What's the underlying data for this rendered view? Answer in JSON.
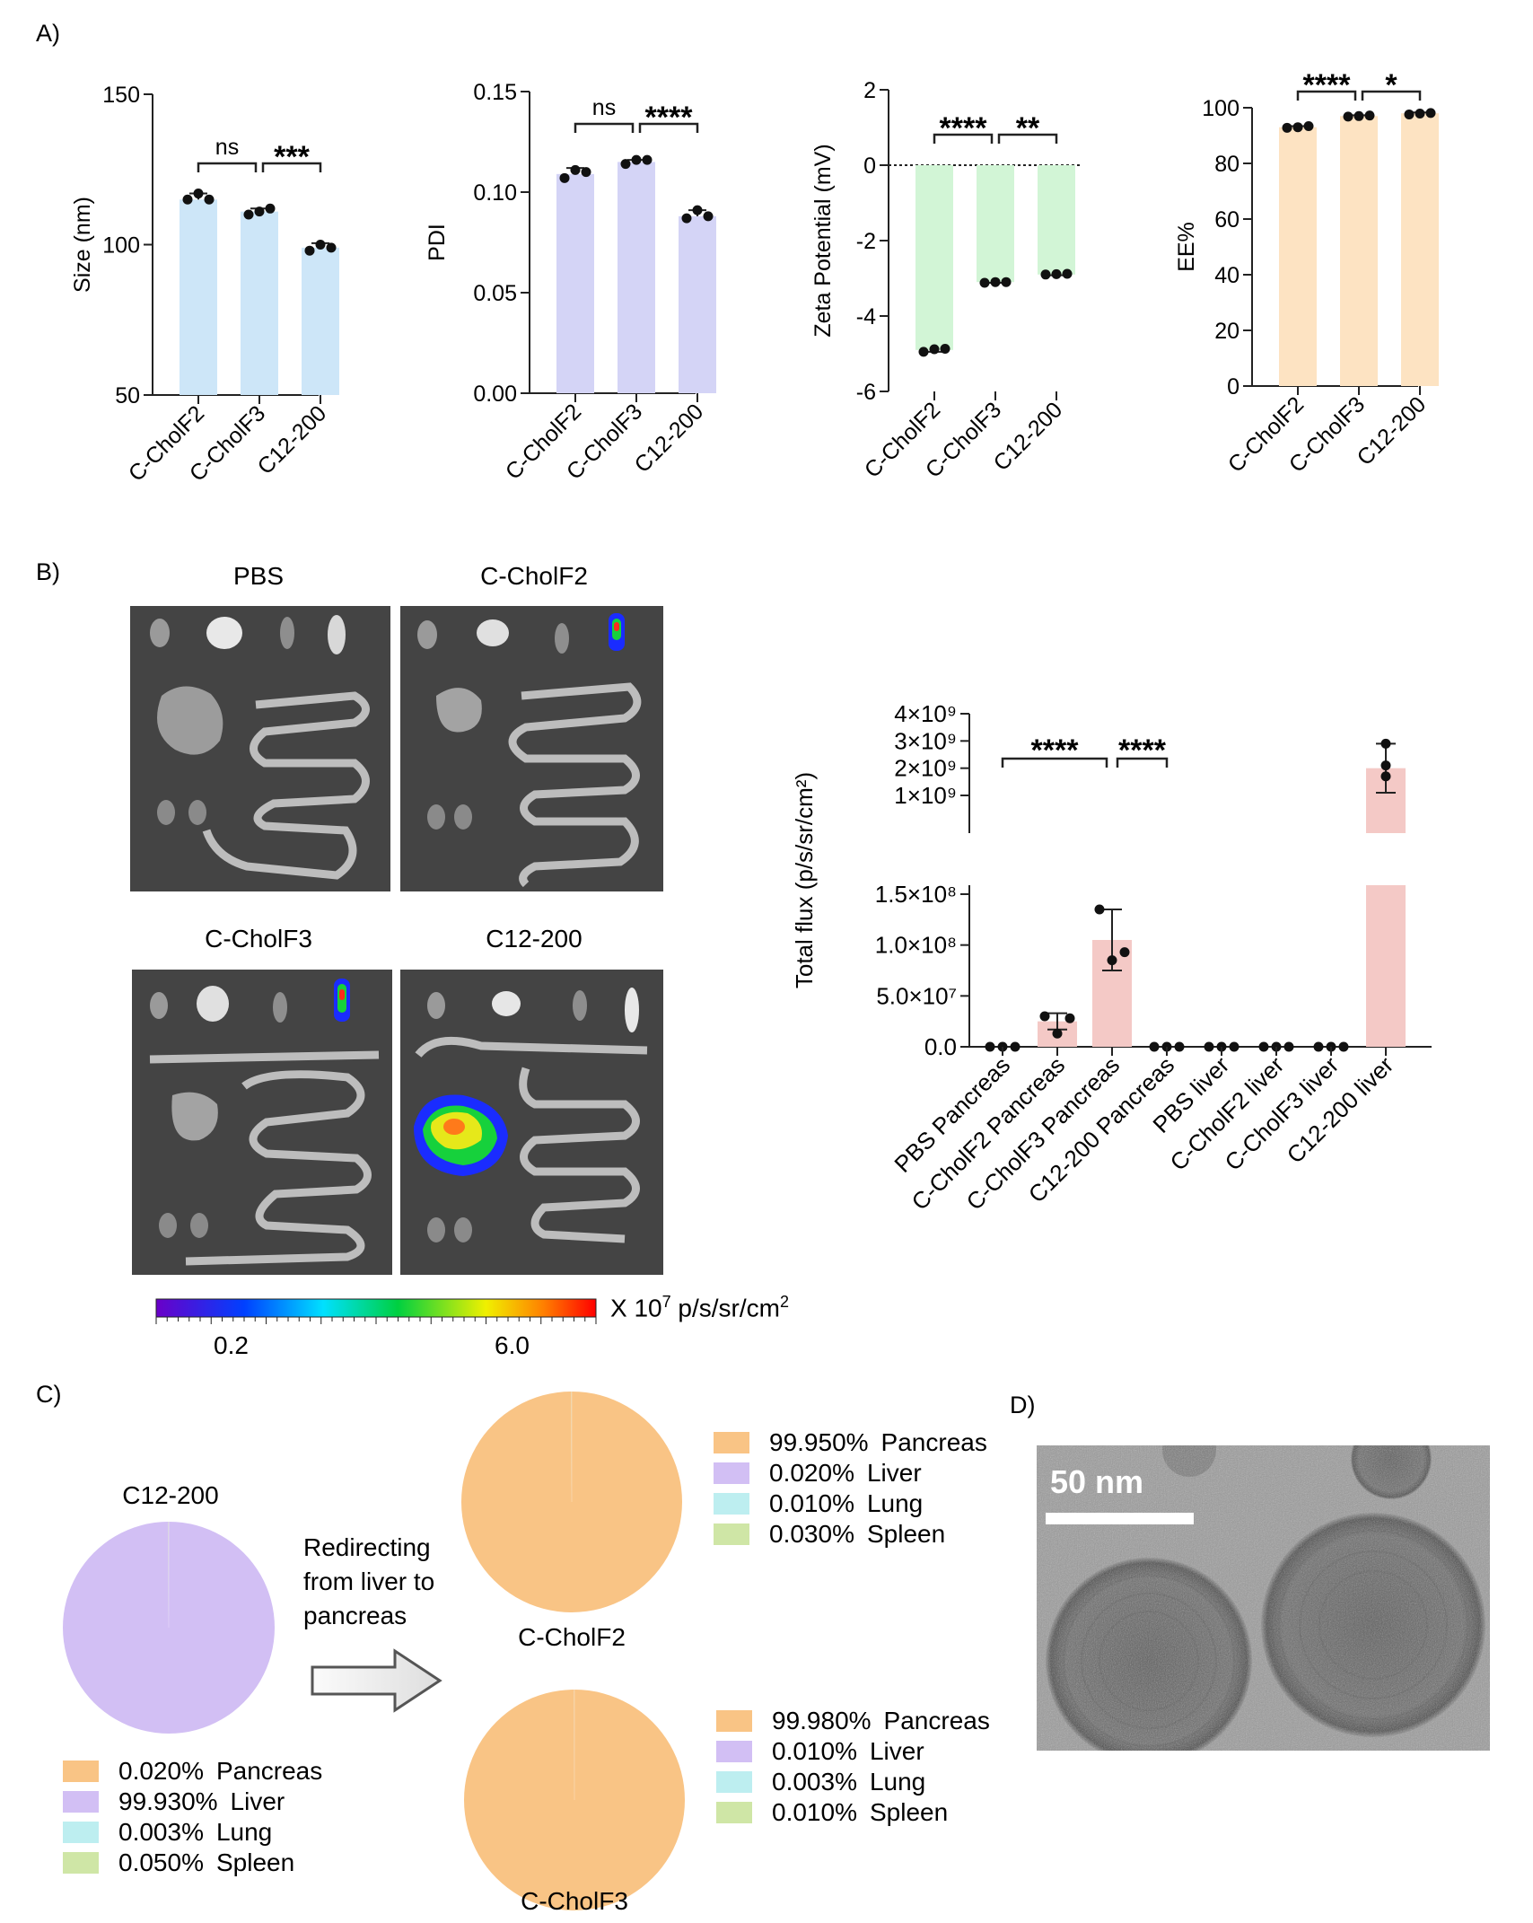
{
  "panels": {
    "a": "A)",
    "b": "B)",
    "c": "C)",
    "d": "D)"
  },
  "colors": {
    "blue": "#cde6f8",
    "purple": "#d4d4f6",
    "green": "#d2f5d6",
    "orange": "#fde3c2",
    "pink": "#f4c9c6",
    "pancreas": "#f9c485",
    "liver": "#d2bff4",
    "lung": "#bdeef0",
    "spleen": "#cfe6a6"
  },
  "chart_data": [
    {
      "type": "bar",
      "categories": [
        "C-CholF2",
        "C-CholF3",
        "C12-200"
      ],
      "values": [
        115,
        111,
        99
      ],
      "points": [
        [
          115,
          117,
          115
        ],
        [
          110,
          111,
          112
        ],
        [
          98,
          100,
          99
        ]
      ],
      "errors": [
        2,
        1,
        1.5
      ],
      "ylabel": "Size (nm)",
      "ylim": [
        50,
        150
      ],
      "yticks": [
        50,
        100,
        150
      ],
      "significance": [
        {
          "from": 0,
          "to": 1,
          "label": "ns"
        },
        {
          "from": 1,
          "to": 2,
          "label": "***"
        }
      ]
    },
    {
      "type": "bar",
      "categories": [
        "C-CholF2",
        "C-CholF3",
        "C12-200"
      ],
      "values": [
        0.109,
        0.115,
        0.088
      ],
      "points": [
        [
          0.107,
          0.111,
          0.11
        ],
        [
          0.114,
          0.116,
          0.116
        ],
        [
          0.087,
          0.091,
          0.088
        ]
      ],
      "errors": [
        0.003,
        0.001,
        0.003
      ],
      "ylabel": "PDI",
      "ylim": [
        0,
        0.15
      ],
      "yticks": [
        "0.00",
        "0.05",
        "0.10",
        "0.15"
      ],
      "significance": [
        {
          "from": 0,
          "to": 1,
          "label": "ns"
        },
        {
          "from": 1,
          "to": 2,
          "label": "****"
        }
      ]
    },
    {
      "type": "bar",
      "categories": [
        "C-CholF2",
        "C-CholF3",
        "C12-200"
      ],
      "values": [
        -4.9,
        -3.1,
        -2.9
      ],
      "points": [
        [
          -4.95,
          -4.88,
          -4.87
        ],
        [
          -3.12,
          -3.1,
          -3.1
        ],
        [
          -2.9,
          -2.89,
          -2.88
        ]
      ],
      "errors": [
        0.05,
        0.02,
        0.02
      ],
      "ylabel": "Zeta Potential (mV)",
      "ylim": [
        -6,
        2
      ],
      "yticks": [
        -6,
        -4,
        -2,
        0,
        2
      ],
      "significance": [
        {
          "from": 0,
          "to": 1,
          "label": "****"
        },
        {
          "from": 1,
          "to": 2,
          "label": "**"
        }
      ]
    },
    {
      "type": "bar",
      "categories": [
        "C-CholF2",
        "C-CholF3",
        "C12-200"
      ],
      "values": [
        93,
        97,
        98
      ],
      "points": [
        [
          92.8,
          93.0,
          93.4
        ],
        [
          96.8,
          97.0,
          97.2
        ],
        [
          97.6,
          97.9,
          98.1
        ]
      ],
      "errors": [
        0.4,
        0.3,
        0.3
      ],
      "ylabel": "EE%",
      "ylim": [
        0,
        100
      ],
      "yticks": [
        0,
        20,
        40,
        60,
        80,
        100
      ],
      "significance": [
        {
          "from": 0,
          "to": 1,
          "label": "****"
        },
        {
          "from": 1,
          "to": 2,
          "label": "*"
        }
      ]
    },
    {
      "type": "bar",
      "categories": [
        "PBS Pancreas",
        "C-CholF2 Pancreas",
        "C-CholF3 Pancreas",
        "C12-200 Pancreas",
        "PBS liver",
        "C-CholF2 liver",
        "C-CholF3 liver",
        "C12-200 liver"
      ],
      "values": [
        0,
        25000000,
        105000000,
        0,
        0,
        0,
        0,
        2000000000
      ],
      "errors": [
        0,
        8000000,
        30000000,
        0,
        0,
        0,
        0,
        900000000
      ],
      "points": [
        [
          0,
          0,
          0
        ],
        [
          30000000,
          13000000,
          28000000
        ],
        [
          135000000,
          85000000,
          93000000
        ],
        [
          0,
          0,
          0
        ],
        [
          0,
          0,
          0
        ],
        [
          0,
          0,
          0
        ],
        [
          0,
          0,
          0
        ],
        [
          2900000000,
          2100000000,
          1700000000
        ]
      ],
      "ylabel": "Total flux (p/s/sr/cm²)",
      "ylim_lower": [
        0,
        150000000
      ],
      "ylim_upper": [
        1000000000,
        4000000000
      ],
      "yticks_lower": [
        "0.0",
        "5.0×10⁷",
        "1.0×10⁸",
        "1.5×10⁸"
      ],
      "yticks_upper": [
        "1×10⁹",
        "2×10⁹",
        "3×10⁹",
        "4×10⁹"
      ],
      "significance": [
        {
          "from": 0,
          "to": 2,
          "label": "****"
        },
        {
          "from": 2,
          "to": 3,
          "label": "****"
        }
      ]
    },
    {
      "type": "pie",
      "title": "C12-200",
      "slices": [
        {
          "label": "Pancreas",
          "pct": "0.020%",
          "value": 0.02
        },
        {
          "label": "Liver",
          "pct": "99.930%",
          "value": 99.93
        },
        {
          "label": "Lung",
          "pct": "0.003%",
          "value": 0.003
        },
        {
          "label": "Spleen",
          "pct": "0.050%",
          "value": 0.05
        }
      ]
    },
    {
      "type": "pie",
      "title": "C-CholF2",
      "slices": [
        {
          "label": "Pancreas",
          "pct": "99.950%",
          "value": 99.95
        },
        {
          "label": "Liver",
          "pct": "0.020%",
          "value": 0.02
        },
        {
          "label": "Lung",
          "pct": "0.010%",
          "value": 0.01
        },
        {
          "label": "Spleen",
          "pct": "0.030%",
          "value": 0.03
        }
      ]
    },
    {
      "type": "pie",
      "title": "C-CholF3",
      "slices": [
        {
          "label": "Pancreas",
          "pct": "99.980%",
          "value": 99.98
        },
        {
          "label": "Liver",
          "pct": "0.010%",
          "value": 0.01
        },
        {
          "label": "Lung",
          "pct": "0.003%",
          "value": 0.003
        },
        {
          "label": "Spleen",
          "pct": "0.010%",
          "value": 0.01
        }
      ]
    }
  ],
  "ivis": {
    "titles": [
      "PBS",
      "C-CholF2",
      "C-CholF3",
      "C12-200"
    ],
    "scale_unit_prefix": "X 10",
    "scale_unit_exp": "7",
    "scale_unit_suffix": " p/s/sr/cm",
    "scale_unit_exp2": "2",
    "scale_min": "0.2",
    "scale_max": "6.0"
  },
  "redirect_text": [
    "Redirecting",
    "from liver to",
    "pancreas"
  ],
  "tem": {
    "scale_label": "50 nm"
  }
}
